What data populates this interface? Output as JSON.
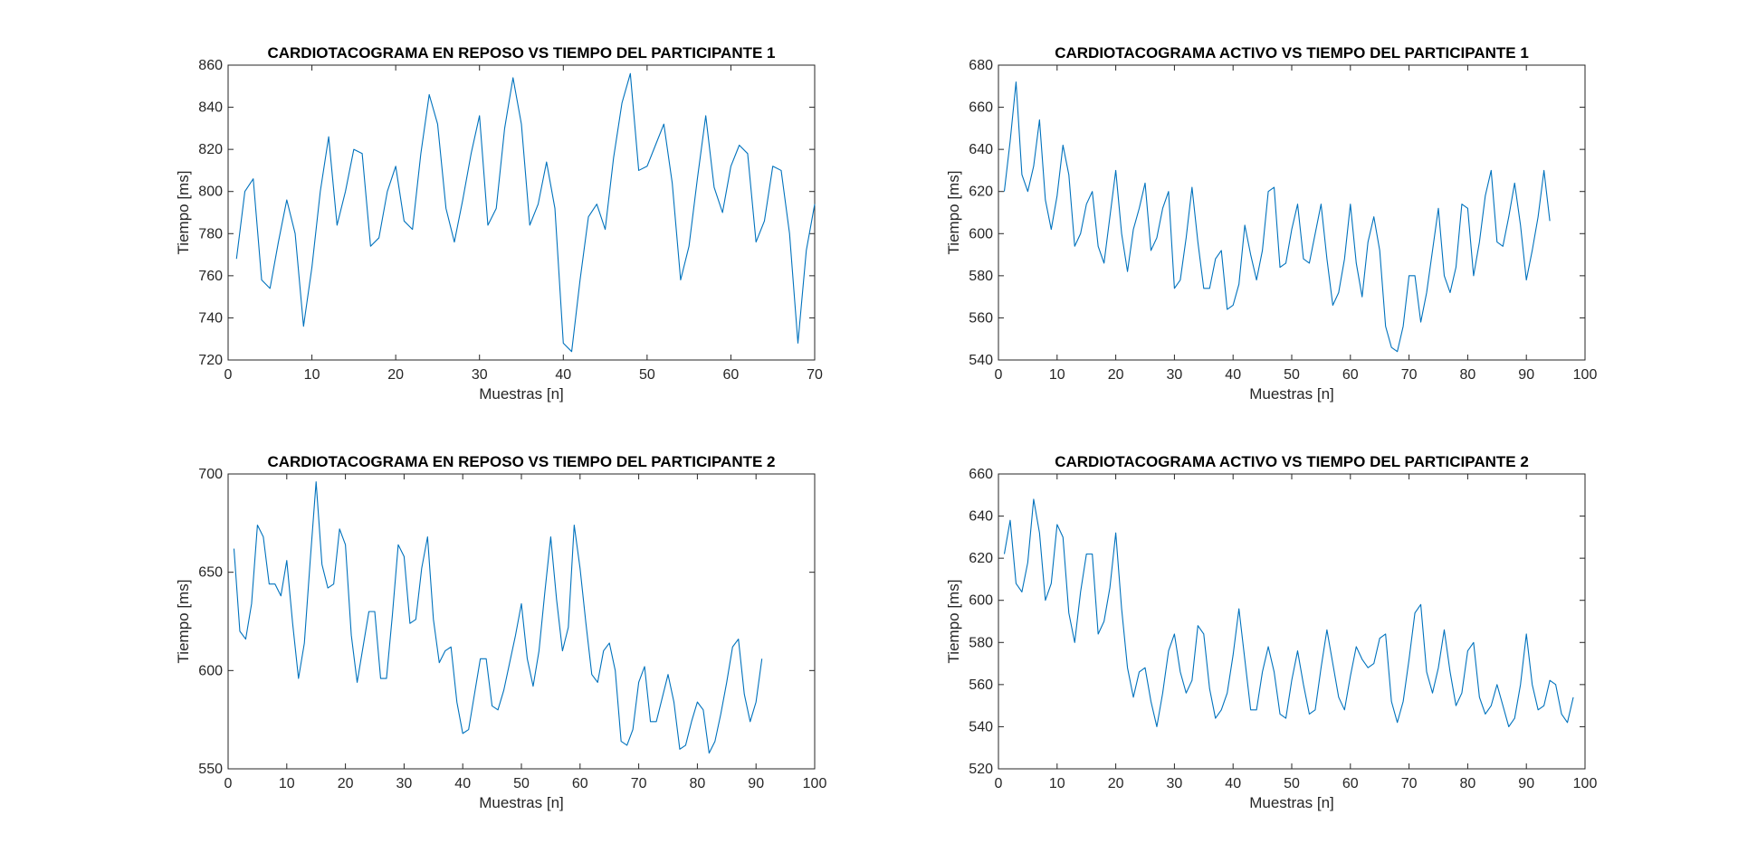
{
  "figure": {
    "background": "#ffffff",
    "line_color": "#0072bd"
  },
  "chart_data": [
    {
      "type": "line",
      "title": "CARDIOTACOGRAMA EN REPOSO VS TIEMPO DEL PARTICIPANTE 1",
      "xlabel": "Muestras [n]",
      "ylabel": "Tiempo [ms]",
      "xlim": [
        0,
        70
      ],
      "ylim": [
        720,
        860
      ],
      "xticks": [
        0,
        10,
        20,
        30,
        40,
        50,
        60,
        70
      ],
      "yticks": [
        720,
        740,
        760,
        780,
        800,
        820,
        840,
        860
      ],
      "grid": false,
      "series": [
        {
          "color": "#0072bd",
          "x": [
            1,
            2,
            3,
            4,
            5,
            6,
            7,
            8,
            9,
            10,
            11,
            12,
            13,
            14,
            15,
            16,
            17,
            18,
            19,
            20,
            21,
            22,
            23,
            24,
            25,
            26,
            27,
            28,
            29,
            30,
            31,
            32,
            33,
            34,
            35,
            36,
            37,
            38,
            39,
            40,
            41,
            42,
            43,
            44,
            45,
            46,
            47,
            48,
            49,
            50,
            51,
            52,
            53,
            54,
            55,
            56,
            57,
            58,
            59,
            60,
            61,
            62,
            63,
            64,
            65,
            66,
            67,
            68,
            69,
            70
          ],
          "values": [
            768,
            800,
            806,
            758,
            754,
            776,
            796,
            780,
            736,
            764,
            800,
            826,
            784,
            800,
            820,
            818,
            774,
            778,
            800,
            812,
            786,
            782,
            818,
            846,
            832,
            792,
            776,
            796,
            818,
            836,
            784,
            792,
            830,
            854,
            832,
            784,
            794,
            814,
            792,
            728,
            724,
            758,
            788,
            794,
            782,
            816,
            842,
            856,
            810,
            812,
            822,
            832,
            804,
            758,
            774,
            806,
            836,
            802,
            790,
            812,
            822,
            818,
            776,
            786,
            812,
            810,
            780,
            728,
            772,
            794
          ]
        }
      ]
    },
    {
      "type": "line",
      "title": "CARDIOTACOGRAMA ACTIVO VS TIEMPO DEL PARTICIPANTE 1",
      "xlabel": "Muestras [n]",
      "ylabel": "Tiempo [ms]",
      "xlim": [
        0,
        100
      ],
      "ylim": [
        540,
        680
      ],
      "xticks": [
        0,
        10,
        20,
        30,
        40,
        50,
        60,
        70,
        80,
        90,
        100
      ],
      "yticks": [
        540,
        560,
        580,
        600,
        620,
        640,
        660,
        680
      ],
      "grid": false,
      "series": [
        {
          "color": "#0072bd",
          "x": [
            1,
            2,
            3,
            4,
            5,
            6,
            7,
            8,
            9,
            10,
            11,
            12,
            13,
            14,
            15,
            16,
            17,
            18,
            19,
            20,
            21,
            22,
            23,
            24,
            25,
            26,
            27,
            28,
            29,
            30,
            31,
            32,
            33,
            34,
            35,
            36,
            37,
            38,
            39,
            40,
            41,
            42,
            43,
            44,
            45,
            46,
            47,
            48,
            49,
            50,
            51,
            52,
            53,
            54,
            55,
            56,
            57,
            58,
            59,
            60,
            61,
            62,
            63,
            64,
            65,
            66,
            67,
            68,
            69,
            70,
            71,
            72,
            73,
            74,
            75,
            76,
            77,
            78,
            79,
            80,
            81,
            82,
            83,
            84,
            85,
            86,
            87,
            88,
            89,
            90,
            91,
            92,
            93,
            94
          ],
          "values": [
            620,
            644,
            672,
            628,
            620,
            632,
            654,
            616,
            602,
            618,
            642,
            628,
            594,
            600,
            614,
            620,
            594,
            586,
            608,
            630,
            600,
            582,
            602,
            612,
            624,
            592,
            598,
            612,
            620,
            574,
            578,
            598,
            622,
            596,
            574,
            574,
            588,
            592,
            564,
            566,
            576,
            604,
            590,
            578,
            592,
            620,
            622,
            584,
            586,
            602,
            614,
            588,
            586,
            600,
            614,
            588,
            566,
            572,
            588,
            614,
            586,
            570,
            596,
            608,
            592,
            556,
            546,
            544,
            556,
            580,
            580,
            558,
            572,
            592,
            612,
            580,
            572,
            584,
            614,
            612,
            580,
            596,
            618,
            630,
            596,
            594,
            608,
            624,
            604,
            578,
            592,
            608,
            630,
            606
          ]
        }
      ]
    },
    {
      "type": "line",
      "title": "CARDIOTACOGRAMA EN REPOSO VS TIEMPO DEL PARTICIPANTE 2",
      "xlabel": "Muestras [n]",
      "ylabel": "Tiempo [ms]",
      "xlim": [
        0,
        100
      ],
      "ylim": [
        550,
        700
      ],
      "xticks": [
        0,
        10,
        20,
        30,
        40,
        50,
        60,
        70,
        80,
        90,
        100
      ],
      "yticks": [
        550,
        600,
        650,
        700
      ],
      "grid": false,
      "series": [
        {
          "color": "#0072bd",
          "x": [
            1,
            2,
            3,
            4,
            5,
            6,
            7,
            8,
            9,
            10,
            11,
            12,
            13,
            14,
            15,
            16,
            17,
            18,
            19,
            20,
            21,
            22,
            23,
            24,
            25,
            26,
            27,
            28,
            29,
            30,
            31,
            32,
            33,
            34,
            35,
            36,
            37,
            38,
            39,
            40,
            41,
            42,
            43,
            44,
            45,
            46,
            47,
            48,
            49,
            50,
            51,
            52,
            53,
            54,
            55,
            56,
            57,
            58,
            59,
            60,
            61,
            62,
            63,
            64,
            65,
            66,
            67,
            68,
            69,
            70,
            71,
            72,
            73,
            74,
            75,
            76,
            77,
            78,
            79,
            80,
            81,
            82,
            83,
            84,
            85,
            86,
            87,
            88,
            89,
            90,
            91
          ],
          "values": [
            662,
            620,
            616,
            634,
            674,
            668,
            644,
            644,
            638,
            656,
            624,
            596,
            614,
            656,
            696,
            654,
            642,
            644,
            672,
            664,
            618,
            594,
            612,
            630,
            630,
            596,
            596,
            628,
            664,
            658,
            624,
            626,
            652,
            668,
            626,
            604,
            610,
            612,
            584,
            568,
            570,
            588,
            606,
            606,
            582,
            580,
            590,
            604,
            618,
            634,
            606,
            592,
            610,
            640,
            668,
            636,
            610,
            622,
            674,
            652,
            624,
            598,
            594,
            610,
            614,
            600,
            564,
            562,
            570,
            594,
            602,
            574,
            574,
            586,
            598,
            584,
            560,
            562,
            574,
            584,
            580,
            558,
            564,
            578,
            594,
            612,
            616,
            588,
            574,
            584,
            606
          ]
        }
      ]
    },
    {
      "type": "line",
      "title": "CARDIOTACOGRAMA ACTIVO VS TIEMPO DEL PARTICIPANTE 2",
      "xlabel": "Muestras [n]",
      "ylabel": "Tiempo [ms]",
      "xlim": [
        0,
        100
      ],
      "ylim": [
        520,
        660
      ],
      "xticks": [
        0,
        10,
        20,
        30,
        40,
        50,
        60,
        70,
        80,
        90,
        100
      ],
      "yticks": [
        520,
        540,
        560,
        580,
        600,
        620,
        640,
        660
      ],
      "grid": false,
      "series": [
        {
          "color": "#0072bd",
          "x": [
            1,
            2,
            3,
            4,
            5,
            6,
            7,
            8,
            9,
            10,
            11,
            12,
            13,
            14,
            15,
            16,
            17,
            18,
            19,
            20,
            21,
            22,
            23,
            24,
            25,
            26,
            27,
            28,
            29,
            30,
            31,
            32,
            33,
            34,
            35,
            36,
            37,
            38,
            39,
            40,
            41,
            42,
            43,
            44,
            45,
            46,
            47,
            48,
            49,
            50,
            51,
            52,
            53,
            54,
            55,
            56,
            57,
            58,
            59,
            60,
            61,
            62,
            63,
            64,
            65,
            66,
            67,
            68,
            69,
            70,
            71,
            72,
            73,
            74,
            75,
            76,
            77,
            78,
            79,
            80,
            81,
            82,
            83,
            84,
            85,
            86,
            87,
            88,
            89,
            90,
            91,
            92,
            93,
            94,
            95,
            96,
            97,
            98
          ],
          "values": [
            622,
            638,
            608,
            604,
            618,
            648,
            632,
            600,
            608,
            636,
            630,
            594,
            580,
            604,
            622,
            622,
            584,
            590,
            606,
            632,
            596,
            568,
            554,
            566,
            568,
            552,
            540,
            556,
            576,
            584,
            566,
            556,
            562,
            588,
            584,
            558,
            544,
            548,
            556,
            574,
            596,
            572,
            548,
            548,
            566,
            578,
            566,
            546,
            544,
            562,
            576,
            560,
            546,
            548,
            568,
            586,
            570,
            554,
            548,
            564,
            578,
            572,
            568,
            570,
            582,
            584,
            552,
            542,
            552,
            572,
            594,
            598,
            566,
            556,
            568,
            586,
            566,
            550,
            556,
            576,
            580,
            554,
            546,
            550,
            560,
            550,
            540,
            544,
            560,
            584,
            560,
            548,
            550,
            562,
            560,
            546,
            542,
            554
          ]
        }
      ]
    }
  ]
}
